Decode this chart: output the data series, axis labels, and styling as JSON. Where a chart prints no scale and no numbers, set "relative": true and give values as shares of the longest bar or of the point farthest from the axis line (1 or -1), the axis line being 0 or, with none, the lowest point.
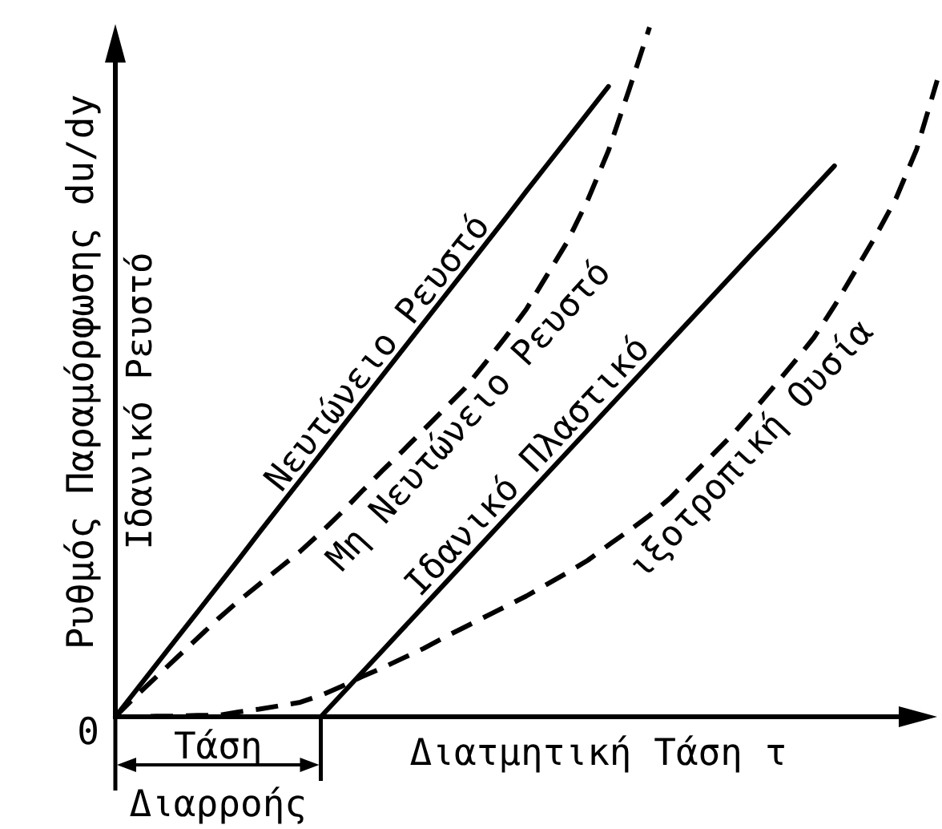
{
  "chart_data": {
    "type": "line",
    "relative": true,
    "xlabel": "Διατμητική Τάση τ",
    "ylabel": "Ρυθμός Παραμόρφωσης du/dy",
    "categories": [
      null,
      null,
      null,
      null,
      null,
      null,
      null,
      null,
      null,
      null,
      null,
      null,
      null,
      null,
      null,
      null,
      null,
      null,
      null,
      null,
      null,
      null,
      null,
      null,
      null,
      null,
      null,
      null,
      null,
      null,
      null,
      null,
      null,
      null,
      null,
      null,
      null,
      null,
      null,
      null,
      null
    ],
    "series": [
      {
        "name": "Νευτώνειο Ρευστό",
        "color": "#000000",
        "line_style": "solid",
        "values": [
          0,
          0.038,
          0.076,
          0.114,
          0.152,
          0.19,
          0.228,
          0.267,
          0.305,
          0.343,
          0.381,
          0.419,
          0.457,
          0.495,
          0.533,
          0.571,
          0.609,
          0.647,
          0.685,
          0.723,
          0.762,
          0.8,
          0.838,
          0.876,
          0.914,
          null,
          null,
          null,
          null,
          null,
          null,
          null,
          null,
          null,
          null,
          null,
          null,
          null,
          null,
          null,
          null
        ]
      },
      {
        "name": "Μη Νευτώνειο Ρευστό",
        "color": "#000000",
        "line_style": "dashed",
        "values": [
          0,
          0.03,
          0.058,
          0.086,
          0.114,
          0.142,
          0.168,
          0.192,
          0.216,
          0.24,
          0.267,
          0.296,
          0.327,
          0.357,
          0.386,
          0.416,
          0.446,
          0.476,
          0.513,
          0.551,
          0.591,
          0.64,
          0.689,
          0.75,
          0.821,
          0.909,
          1,
          null,
          null,
          null,
          null,
          null,
          null,
          null,
          null,
          null,
          null,
          null,
          null,
          null,
          null
        ]
      },
      {
        "name": "Ιδανικό Πλαστικό",
        "color": "#000000",
        "line_style": "solid",
        "values": [
          null,
          null,
          null,
          null,
          null,
          null,
          null,
          null,
          null,
          null,
          0,
          0.032,
          0.064,
          0.096,
          0.128,
          0.16,
          0.192,
          0.224,
          0.256,
          0.288,
          0.32,
          0.352,
          0.384,
          0.416,
          0.448,
          0.48,
          0.512,
          0.544,
          0.576,
          0.608,
          0.64,
          0.672,
          0.703,
          0.735,
          0.767,
          0.799,
          null,
          null,
          null,
          null,
          null
        ]
      },
      {
        "name": "ιξοτροπική Ουσία",
        "color": "#000000",
        "line_style": "dashed",
        "values": [
          0,
          0,
          0.001,
          0.001,
          0.002,
          0.002,
          0.007,
          0.011,
          0.016,
          0.021,
          0.031,
          0.044,
          0.058,
          0.071,
          0.085,
          0.099,
          0.115,
          0.13,
          0.145,
          0.16,
          0.175,
          0.192,
          0.209,
          0.227,
          0.249,
          0.27,
          0.292,
          0.317,
          0.348,
          0.378,
          0.408,
          0.442,
          0.477,
          0.513,
          0.55,
          0.596,
          0.646,
          0.697,
          0.752,
          0.823,
          0.923
        ]
      }
    ],
    "annotations": [
      "Ιδανικό Ρευστό",
      "0",
      "Τάση Διαρροής"
    ]
  }
}
